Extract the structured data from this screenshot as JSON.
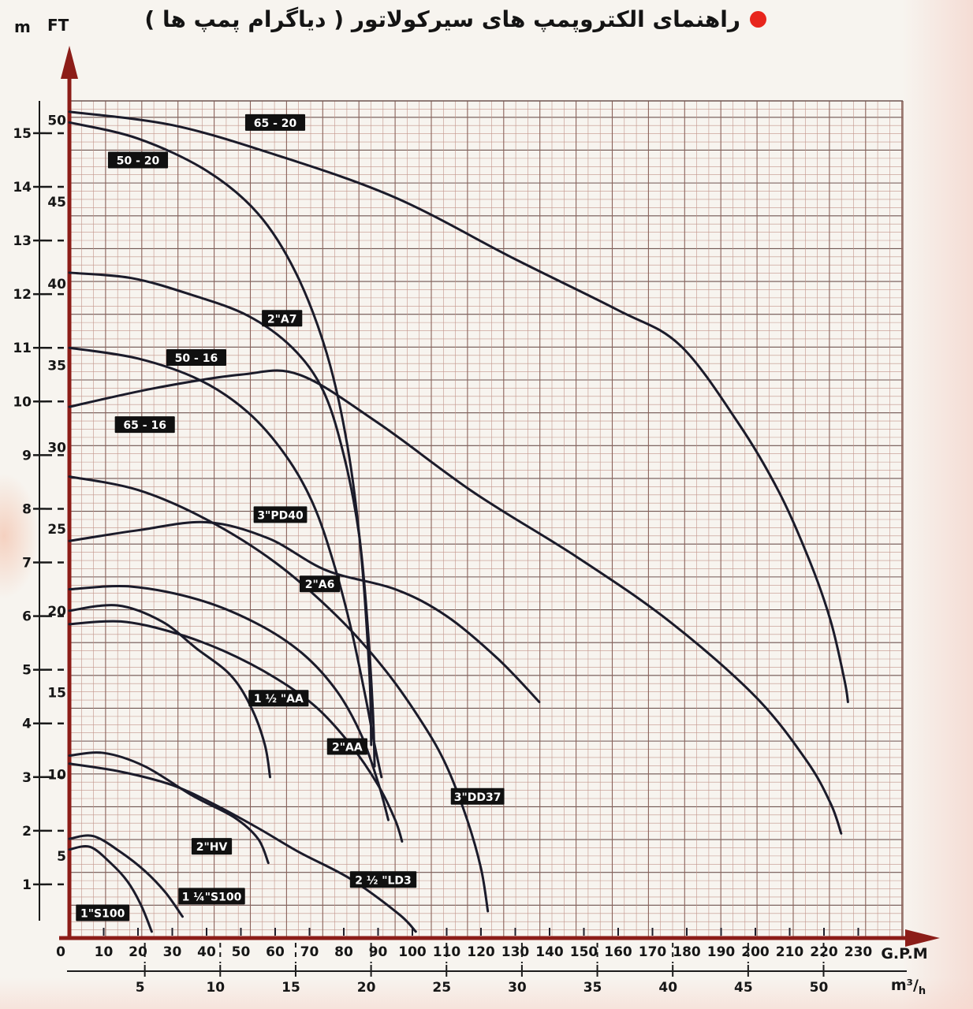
{
  "title": {
    "text": "راهنمای الکتروپمپ های سیرکولاتور ( دیاگرام پمپ ها )",
    "bullet_color": "#e8251c"
  },
  "y_axis": {
    "primary_unit": "m",
    "secondary_unit": "FT",
    "m_ticks": [
      1,
      2,
      3,
      4,
      5,
      6,
      7,
      8,
      9,
      10,
      11,
      12,
      13,
      14,
      15
    ],
    "ft_ticks": [
      5,
      10,
      15,
      20,
      25,
      30,
      35,
      40,
      45,
      50
    ]
  },
  "x_axis": {
    "unit": "G.P.M",
    "ticks": [
      0,
      10,
      20,
      30,
      40,
      50,
      60,
      70,
      80,
      90,
      100,
      110,
      120,
      130,
      140,
      150,
      160,
      170,
      180,
      190,
      200,
      210,
      220,
      230
    ]
  },
  "x_axis2": {
    "unit": "m³/h",
    "ticks": [
      5,
      10,
      15,
      20,
      25,
      30,
      35,
      40,
      45,
      50
    ]
  },
  "colors": {
    "curve": "#1b1b2a",
    "axis_arrow": "#8c1d18",
    "grid_minor": "#c2948a",
    "grid_major_v": "#8a625a",
    "grid_major_h": "#6f5550",
    "label_box": "#101010",
    "label_text": "#ffffff",
    "tick_text": "#161616"
  },
  "chart_data": {
    "type": "line",
    "title": "راهنمای الکتروپمپ های سیرکولاتور ( دیاگرام پمپ ها )",
    "xlabel": "G.P.M",
    "xlabel2": "m³/h",
    "ylabel": "m",
    "ylabel2": "FT",
    "xlim_gpm": [
      0,
      230
    ],
    "ylim_m": [
      0,
      15.6
    ],
    "grid": "fine red-brown graph grid",
    "legend_position": "labels on curves",
    "series": [
      {
        "name": "65 - 20",
        "label_at": [
          60,
          15.2
        ],
        "points": [
          [
            0,
            15.4
          ],
          [
            30,
            15.15
          ],
          [
            60,
            14.6
          ],
          [
            95,
            13.8
          ],
          [
            130,
            12.65
          ],
          [
            160,
            11.7
          ],
          [
            178,
            11.05
          ],
          [
            195,
            9.6
          ],
          [
            207,
            8.3
          ],
          [
            216,
            7.0
          ],
          [
            222,
            5.9
          ],
          [
            226,
            4.8
          ],
          [
            227,
            4.4
          ]
        ]
      },
      {
        "name": "50 - 20",
        "label_at": [
          20,
          14.5
        ],
        "points": [
          [
            0,
            15.2
          ],
          [
            20,
            14.9
          ],
          [
            40,
            14.3
          ],
          [
            55,
            13.5
          ],
          [
            66,
            12.4
          ],
          [
            75,
            10.9
          ],
          [
            81,
            9.2
          ],
          [
            85,
            7.2
          ],
          [
            87.5,
            4.9
          ],
          [
            88,
            3.6
          ]
        ]
      },
      {
        "name": "2\"A7",
        "label_at": [
          62,
          11.55
        ],
        "points": [
          [
            0,
            12.4
          ],
          [
            18,
            12.3
          ],
          [
            35,
            12.0
          ],
          [
            52,
            11.6
          ],
          [
            65,
            11.0
          ],
          [
            74,
            10.2
          ],
          [
            80,
            9.0
          ],
          [
            84.5,
            7.5
          ],
          [
            87,
            5.8
          ],
          [
            88.5,
            4.2
          ],
          [
            89,
            3.2
          ]
        ]
      },
      {
        "name": "50 - 16",
        "label_at": [
          37,
          10.82
        ],
        "points": [
          [
            0,
            11.0
          ],
          [
            20,
            10.8
          ],
          [
            38,
            10.4
          ],
          [
            52,
            9.8
          ],
          [
            63,
            9.0
          ],
          [
            71,
            8.1
          ],
          [
            77,
            7.0
          ],
          [
            82,
            5.8
          ],
          [
            86,
            4.6
          ],
          [
            89,
            3.6
          ],
          [
            91,
            3.0
          ]
        ]
      },
      {
        "name": "65 - 16",
        "label_at": [
          22,
          9.57
        ],
        "points": [
          [
            0,
            9.9
          ],
          [
            25,
            10.25
          ],
          [
            50,
            10.5
          ],
          [
            67,
            10.5
          ],
          [
            90,
            9.6
          ],
          [
            118,
            8.3
          ],
          [
            148,
            7.1
          ],
          [
            175,
            5.9
          ],
          [
            200,
            4.5
          ],
          [
            215,
            3.3
          ],
          [
            222,
            2.5
          ],
          [
            225,
            1.95
          ]
        ]
      },
      {
        "name": "3\"PD40",
        "label_at": [
          61.5,
          7.89
        ],
        "points": [
          [
            0,
            7.4
          ],
          [
            20,
            7.6
          ],
          [
            40,
            7.75
          ],
          [
            58,
            7.45
          ],
          [
            75,
            6.85
          ],
          [
            95,
            6.5
          ],
          [
            110,
            6.0
          ],
          [
            125,
            5.2
          ],
          [
            137,
            4.4
          ]
        ]
      },
      {
        "name": "3\"DD37",
        "label_at": [
          119,
          2.64
        ],
        "points": [
          [
            0,
            8.6
          ],
          [
            20,
            8.35
          ],
          [
            40,
            7.8
          ],
          [
            60,
            7.0
          ],
          [
            78,
            6.0
          ],
          [
            92,
            5.0
          ],
          [
            103,
            4.0
          ],
          [
            110,
            3.2
          ],
          [
            116,
            2.2
          ],
          [
            120,
            1.3
          ],
          [
            122,
            0.5
          ]
        ]
      },
      {
        "name": "2\"A6",
        "label_at": [
          73,
          6.6
        ],
        "points": [
          [
            0,
            6.5
          ],
          [
            18,
            6.55
          ],
          [
            38,
            6.3
          ],
          [
            55,
            5.85
          ],
          [
            68,
            5.3
          ],
          [
            78,
            4.6
          ],
          [
            85,
            3.8
          ],
          [
            90,
            2.9
          ],
          [
            93,
            2.2
          ]
        ]
      },
      {
        "name": "1 ½ \"AA",
        "label_at": [
          61,
          4.47
        ],
        "points": [
          [
            0,
            6.1
          ],
          [
            14,
            6.2
          ],
          [
            27,
            5.9
          ],
          [
            37,
            5.4
          ],
          [
            47,
            4.9
          ],
          [
            53,
            4.3
          ],
          [
            57,
            3.6
          ],
          [
            58.5,
            3.0
          ]
        ]
      },
      {
        "name": "2\"AA",
        "label_at": [
          81,
          3.57
        ],
        "points": [
          [
            0,
            5.85
          ],
          [
            15,
            5.9
          ],
          [
            30,
            5.7
          ],
          [
            45,
            5.35
          ],
          [
            60,
            4.85
          ],
          [
            72,
            4.3
          ],
          [
            82,
            3.6
          ],
          [
            90,
            2.85
          ],
          [
            95,
            2.2
          ],
          [
            97,
            1.8
          ]
        ]
      },
      {
        "name": "2\"HV",
        "label_at": [
          41.5,
          1.71
        ],
        "points": [
          [
            0,
            3.4
          ],
          [
            10,
            3.45
          ],
          [
            22,
            3.2
          ],
          [
            36,
            2.65
          ],
          [
            48,
            2.25
          ],
          [
            55,
            1.85
          ],
          [
            58,
            1.4
          ]
        ]
      },
      {
        "name": "2 ½ \"LD3",
        "label_at": [
          91.5,
          1.09
        ],
        "points": [
          [
            0,
            3.25
          ],
          [
            15,
            3.1
          ],
          [
            30,
            2.85
          ],
          [
            42,
            2.5
          ],
          [
            55,
            2.05
          ],
          [
            67,
            1.6
          ],
          [
            82,
            1.1
          ],
          [
            96,
            0.45
          ],
          [
            101,
            0.12
          ]
        ]
      },
      {
        "name": "1 ¼\"S100",
        "label_at": [
          41.5,
          0.78
        ],
        "points": [
          [
            0,
            1.85
          ],
          [
            7,
            1.9
          ],
          [
            15,
            1.6
          ],
          [
            22,
            1.25
          ],
          [
            28,
            0.85
          ],
          [
            33,
            0.4
          ]
        ]
      },
      {
        "name": "1\"S100",
        "label_at": [
          9.7,
          0.47
        ],
        "points": [
          [
            0,
            1.65
          ],
          [
            6,
            1.7
          ],
          [
            12,
            1.4
          ],
          [
            17,
            1.05
          ],
          [
            21,
            0.6
          ],
          [
            24,
            0.12
          ]
        ]
      }
    ]
  }
}
